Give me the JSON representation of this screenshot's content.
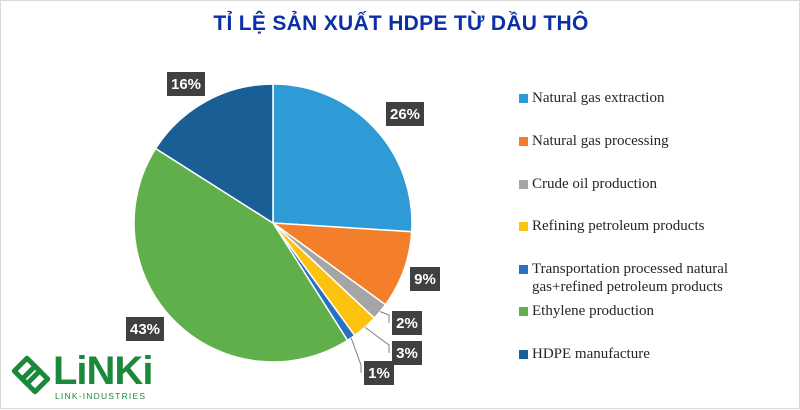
{
  "chart_data": {
    "type": "pie",
    "title": "TỈ LỆ SẢN XUẤT HDPE TỪ DẦU THÔ",
    "slices": [
      {
        "label": "Natural gas extraction",
        "value": 26,
        "display": "26%",
        "color": "#2e9ad6"
      },
      {
        "label": "Natural gas processing",
        "value": 9,
        "display": "9%",
        "color": "#f47f2b"
      },
      {
        "label": "Crude oil production",
        "value": 2,
        "display": "2%",
        "color": "#a5a5a5"
      },
      {
        "label": "Refining petroleum products",
        "value": 3,
        "display": "3%",
        "color": "#fcc20d"
      },
      {
        "label": "Transportation processed natural gas+refined petroleum products",
        "label_lines": [
          "Transportation processed natural",
          "gas+refined petroleum products"
        ],
        "value": 1,
        "display": "1%",
        "color": "#2a70c0"
      },
      {
        "label": "Ethylene production",
        "value": 43,
        "display": "43%",
        "color": "#5fb04a"
      },
      {
        "label": "HDPE manufacture",
        "value": 16,
        "display": "16%",
        "color": "#1a5e96"
      }
    ],
    "legend_position": "right"
  },
  "logo": {
    "name": "LiNKi",
    "tagline": "LINK-INDUSTRIES",
    "color": "#1a8a3a"
  }
}
